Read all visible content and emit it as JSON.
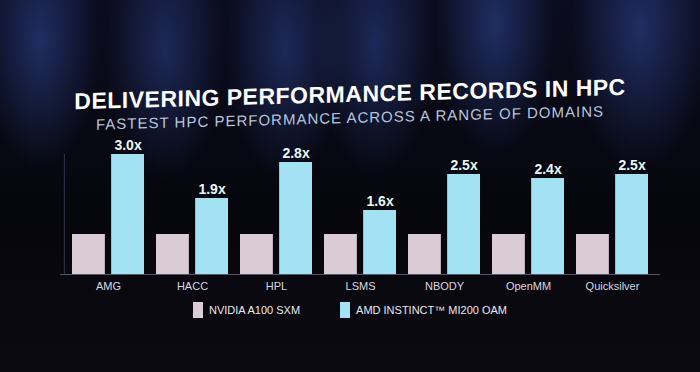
{
  "chart_data": {
    "type": "bar",
    "title": "DELIVERING PERFORMANCE RECORDS IN HPC",
    "subtitle": "FASTEST HPC PERFORMANCE ACROSS A RANGE OF DOMAINS",
    "categories": [
      "AMG",
      "HACC",
      "HPL",
      "LSMS",
      "NBODY",
      "OpenMM",
      "Quicksilver"
    ],
    "series": [
      {
        "name": "NVIDIA A100 SXM",
        "color": "#d9ccd4",
        "values": [
          1,
          1,
          1,
          1,
          1,
          1,
          1
        ]
      },
      {
        "name": "AMD INSTINCT™ MI200 OAM",
        "color": "#a3e2f2",
        "values": [
          3.0,
          1.9,
          2.8,
          1.6,
          2.5,
          2.4,
          2.5
        ],
        "value_labels": [
          "3.0x",
          "1.9x",
          "2.8x",
          "1.6x",
          "2.5x",
          "2.4x",
          "2.5x"
        ]
      }
    ],
    "ylim": [
      0,
      3
    ],
    "yticks": [],
    "tick_labels": "x",
    "grid": false,
    "data_labels": true,
    "legend": "bottom"
  }
}
